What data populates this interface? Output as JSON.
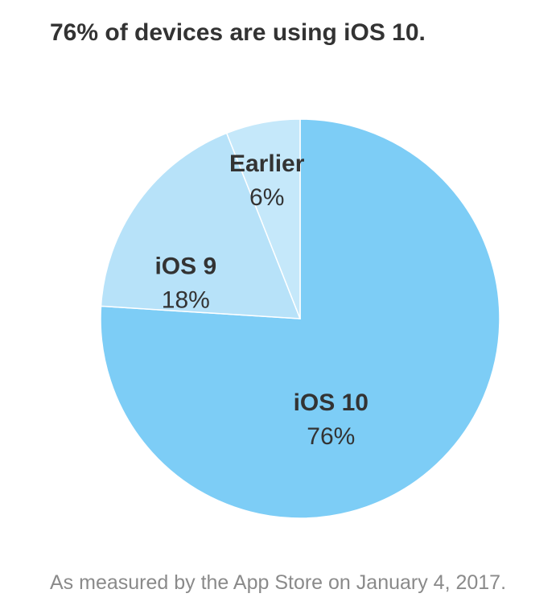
{
  "title": "76% of devices are using iOS 10.",
  "footnote": "As measured by the App Store on January 4, 2017.",
  "colors": {
    "slice_ios10": "#7dcdf6",
    "slice_ios9": "#b7e2f9",
    "slice_earlier": "#c5e8fa",
    "label_text": "#333333",
    "separator": "#ffffff"
  },
  "chart_data": {
    "type": "pie",
    "title": "76% of devices are using iOS 10.",
    "start": "12 o'clock",
    "direction": "clockwise",
    "slices": [
      {
        "label": "iOS 10",
        "value": 76,
        "value_label": "76%",
        "color": "#7dcdf6"
      },
      {
        "label": "iOS 9",
        "value": 18,
        "value_label": "18%",
        "color": "#b7e2f9"
      },
      {
        "label": "Earlier",
        "value": 6,
        "value_label": "6%",
        "color": "#c5e8fa"
      }
    ]
  }
}
